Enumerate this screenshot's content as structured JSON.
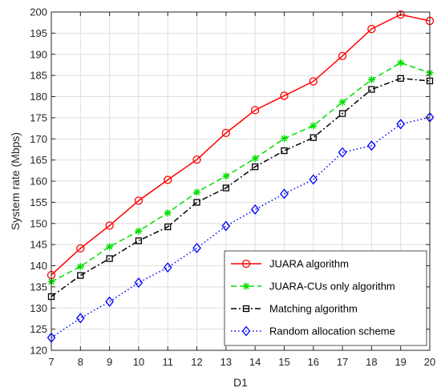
{
  "chart_data": {
    "type": "line",
    "xlabel": "D1",
    "ylabel": "System rate (Mbps)",
    "xlim": [
      7,
      20
    ],
    "ylim": [
      120,
      200
    ],
    "xticks": [
      7,
      8,
      9,
      10,
      11,
      12,
      13,
      14,
      15,
      16,
      17,
      18,
      19,
      20
    ],
    "yticks": [
      120,
      125,
      130,
      135,
      140,
      145,
      150,
      155,
      160,
      165,
      170,
      175,
      180,
      185,
      190,
      195,
      200
    ],
    "grid": true,
    "legend_position": "lower-right",
    "x": [
      7,
      8,
      9,
      10,
      11,
      12,
      13,
      14,
      15,
      16,
      17,
      18,
      19,
      20
    ],
    "series": [
      {
        "name": "JUARA algorithm",
        "color": "#ff0000",
        "line_style": "solid",
        "marker": "circle",
        "values": [
          137.8,
          144.1,
          149.5,
          155.4,
          160.3,
          165.1,
          171.4,
          176.8,
          180.2,
          183.6,
          189.6,
          196.0,
          199.4,
          197.9
        ]
      },
      {
        "name": "JUARA-CUs only algorithm",
        "color": "#00e000",
        "line_style": "dashed",
        "marker": "asterisk",
        "values": [
          136.2,
          139.8,
          144.5,
          148.2,
          152.5,
          157.4,
          161.2,
          165.4,
          170.1,
          173.1,
          178.7,
          184.0,
          188.0,
          185.6
        ]
      },
      {
        "name": "Matching algorithm",
        "color": "#000000",
        "line_style": "dash-dot",
        "marker": "square",
        "values": [
          132.7,
          137.7,
          141.7,
          145.9,
          149.2,
          155.0,
          158.4,
          163.4,
          167.2,
          170.3,
          176.0,
          181.7,
          184.3,
          183.7
        ]
      },
      {
        "name": "Random allocation scheme",
        "color": "#0000ff",
        "line_style": "dotted",
        "marker": "diamond",
        "values": [
          123.0,
          127.6,
          131.5,
          136.0,
          139.6,
          144.2,
          149.4,
          153.3,
          157.0,
          160.4,
          166.8,
          168.4,
          173.5,
          175.1
        ]
      }
    ]
  }
}
